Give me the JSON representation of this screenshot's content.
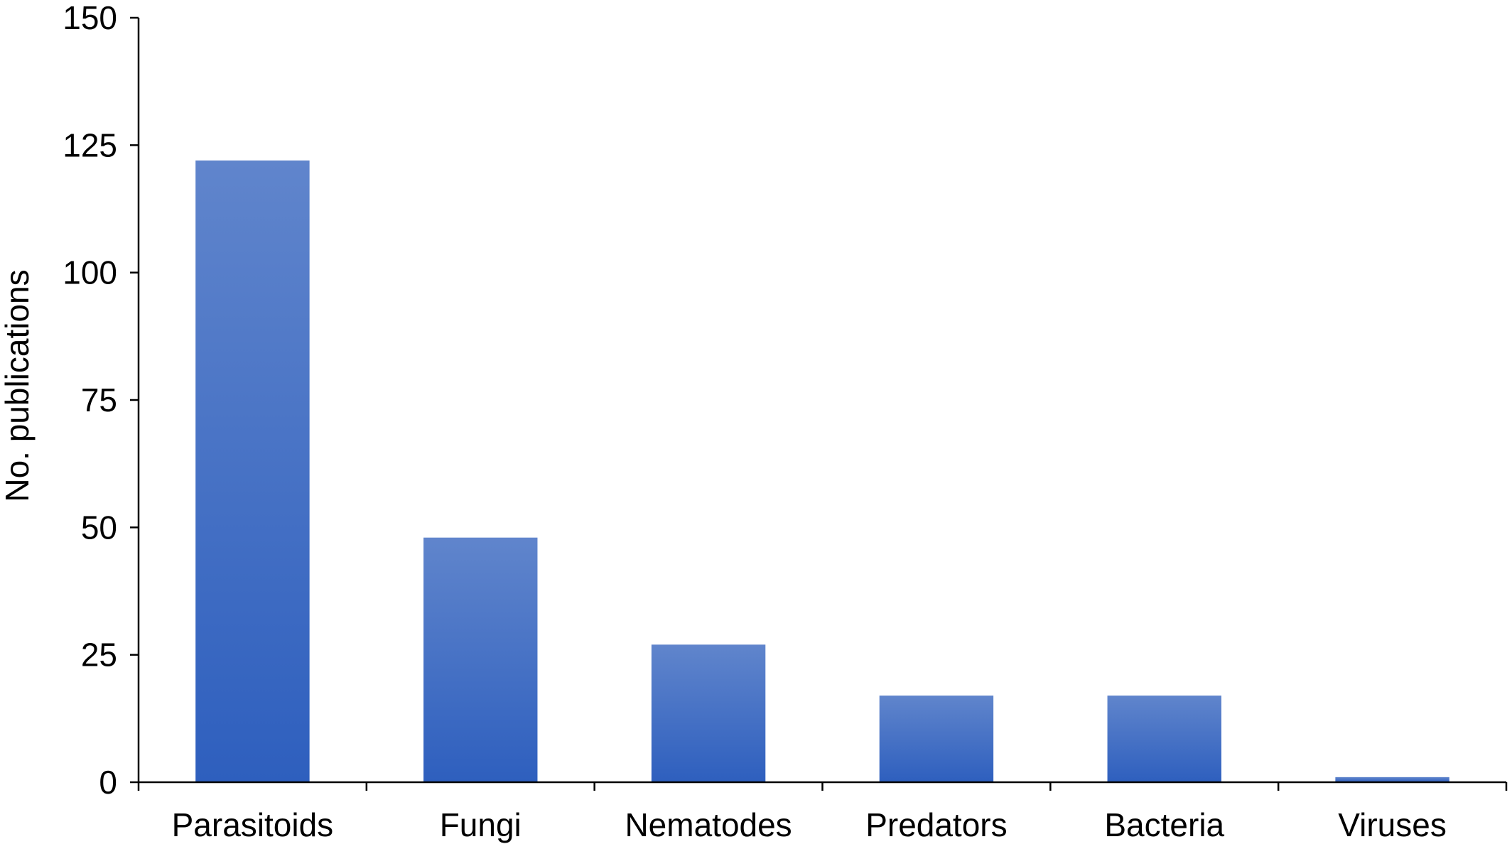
{
  "chart_data": {
    "type": "bar",
    "title": "",
    "xlabel": "",
    "ylabel": "No. publications",
    "categories": [
      "Parasitoids",
      "Fungi",
      "Nematodes",
      "Predators",
      "Bacteria",
      "Viruses"
    ],
    "values": [
      122,
      48,
      27,
      17,
      17,
      1
    ],
    "ylim": [
      0,
      150
    ],
    "yticks": [
      0,
      25,
      50,
      75,
      100,
      125,
      150
    ],
    "ytick_labels": [
      "0",
      "25",
      "50",
      "75",
      "100",
      "125",
      "150"
    ],
    "grid": false,
    "legend": "none",
    "colors": {
      "bar_top": "#6085CC",
      "bar_bottom": "#2E5FBE",
      "axis": "#000000",
      "text": "#000000"
    }
  }
}
